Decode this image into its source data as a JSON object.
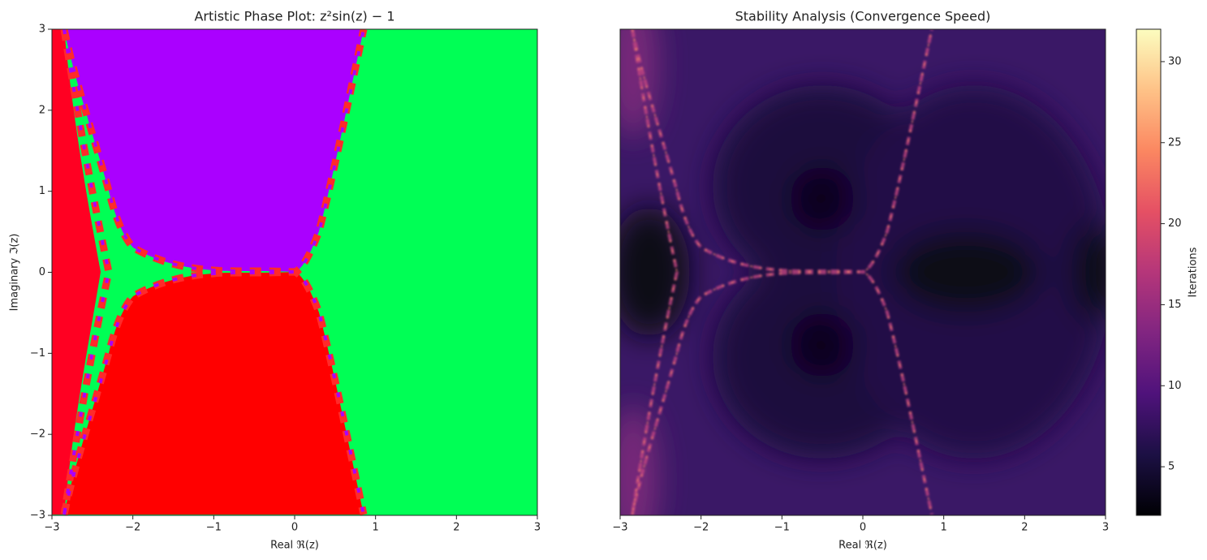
{
  "chart_data": [
    {
      "type": "phase",
      "title": "Artistic Phase Plot: z²sin(z) − 1",
      "xlabel": "Real ℜ(z)",
      "ylabel": "Imaginary ℑ(z)",
      "xlim": [
        -3,
        3
      ],
      "ylim": [
        -3,
        3
      ],
      "xticks": [
        {
          "value": -3,
          "label": "−3"
        },
        {
          "value": -2,
          "label": "−2"
        },
        {
          "value": -1,
          "label": "−1"
        },
        0,
        1,
        2,
        3
      ],
      "yticks": [
        {
          "value": -3,
          "label": "−3"
        },
        {
          "value": -2,
          "label": "−2"
        },
        {
          "value": -1,
          "label": "−1"
        },
        0,
        1,
        2,
        3
      ]
    },
    {
      "type": "heatmap",
      "title": "Stability Analysis (Convergence Speed)",
      "xlabel": "Real ℜ(z)",
      "xlim": [
        -3,
        3
      ],
      "xticks": [
        {
          "value": -3,
          "label": "−3"
        },
        {
          "value": -2,
          "label": "−2"
        },
        {
          "value": -1,
          "label": "−1"
        },
        0,
        1,
        2,
        3
      ],
      "colorbar_label": "Iterations",
      "colormap": "magma",
      "clim": [
        2,
        32
      ],
      "cticks": [
        5,
        10,
        15,
        20,
        25,
        30
      ]
    }
  ]
}
